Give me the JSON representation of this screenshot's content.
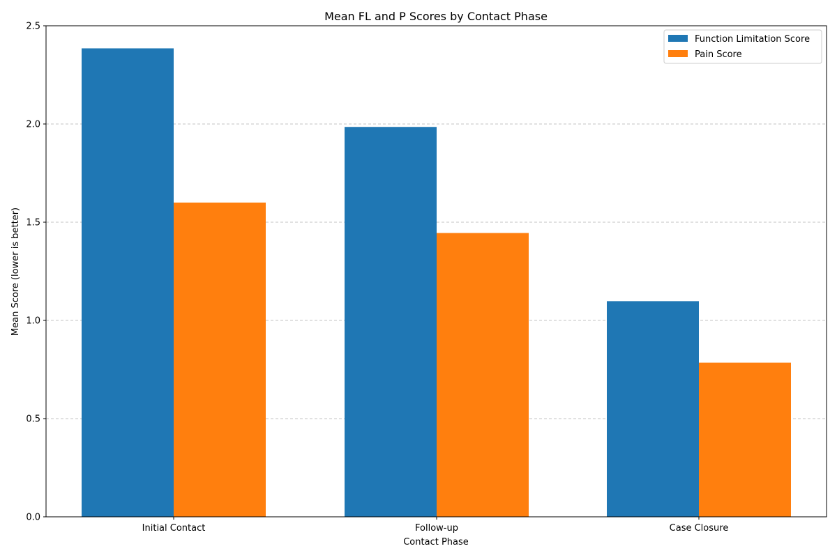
{
  "chart_data": {
    "type": "bar",
    "title": "Mean FL and P Scores by Contact Phase",
    "xlabel": "Contact Phase",
    "ylabel": "Mean Score (lower is better)",
    "categories": [
      "Initial Contact",
      "Follow-up",
      "Case Closure"
    ],
    "series": [
      {
        "name": "Function Limitation Score",
        "color": "#1f77b4",
        "values": [
          2.385,
          1.985,
          1.098
        ]
      },
      {
        "name": "Pain Score",
        "color": "#ff7f0e",
        "values": [
          1.6,
          1.445,
          0.785
        ]
      }
    ],
    "ylim": [
      0,
      2.5
    ],
    "yticks": [
      "0.0",
      "0.5",
      "1.0",
      "1.5",
      "2.0",
      "2.5"
    ],
    "grid": "y-dashed",
    "legend_position": "top-right"
  }
}
